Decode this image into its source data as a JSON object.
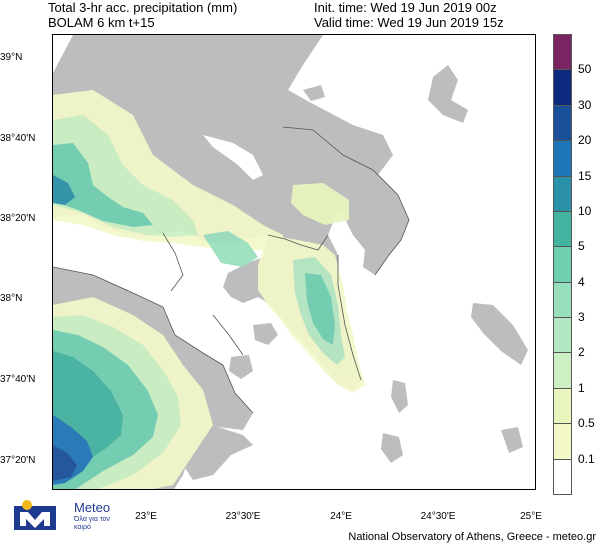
{
  "header": {
    "title_line1": "Total 3-hr acc. precipitation (mm)",
    "title_line2": "BOLAM 6 km t+15",
    "init_time": "Init. time: Wed 19 Jun 2019 00z",
    "valid_time": "Valid time: Wed 19 Jun 2019 15z"
  },
  "lat_ticks": [
    "39°N",
    "38°40'N",
    "38°20'N",
    "38°N",
    "37°40'N",
    "37°20'N"
  ],
  "lon_ticks": [
    "23°E",
    "23°30'E",
    "24°E",
    "24°30'E",
    "25°E"
  ],
  "colorbar": {
    "unit": "mm",
    "levels": [
      "0.1",
      "0.5",
      "1",
      "2",
      "3",
      "4",
      "5",
      "10",
      "15",
      "20",
      "30",
      "50"
    ],
    "colors": [
      "#ffffff",
      "#f4f8c9",
      "#e8f6bd",
      "#ccf0c4",
      "#b4e8c2",
      "#98dfbd",
      "#6fcfb1",
      "#42b39f",
      "#2a91a8",
      "#1e75b8",
      "#1a4f9a",
      "#0e2a7e",
      "#7a2462"
    ]
  },
  "map_colors": {
    "land": "#bdbdbd",
    "sea": "#ffffff",
    "borders": "#555555"
  },
  "logo": {
    "name": "Meteo",
    "tagline": "Όλα για τον καιρό"
  },
  "footer": "National Observatory of Athens, Greece - meteo.gr"
}
